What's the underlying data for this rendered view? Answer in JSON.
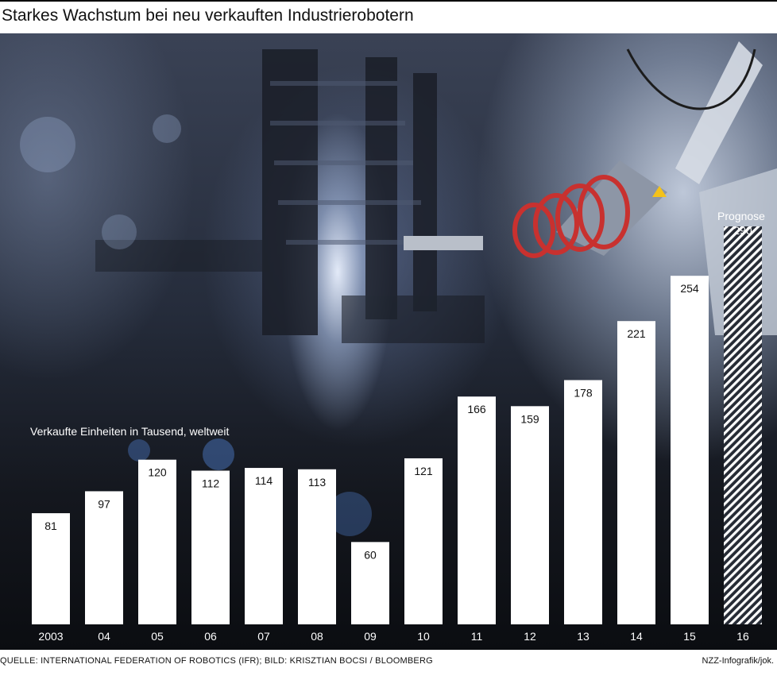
{
  "title": "Starkes Wachstum bei neu verkauften Industrierobotern",
  "footer": {
    "source": "QUELLE: INTERNATIONAL FEDERATION OF ROBOTICS (IFR); BILD: KRISZTIAN BOCSI / BLOOMBERG",
    "credit": "NZZ-Infografik/jok."
  },
  "chart_data": {
    "type": "bar",
    "subtitle": "Verkaufte Einheiten in Tausend, weltweit",
    "categories": [
      "2003",
      "04",
      "05",
      "06",
      "07",
      "08",
      "09",
      "10",
      "11",
      "12",
      "13",
      "14",
      "15",
      "16"
    ],
    "values": [
      81,
      97,
      120,
      112,
      114,
      113,
      60,
      121,
      166,
      159,
      178,
      221,
      254,
      290
    ],
    "forecast": {
      "index": 13,
      "label": "Prognose",
      "style": "hatched"
    },
    "ylim": [
      0,
      290
    ],
    "grid": false,
    "bar_color": "#ffffff",
    "label_color": "#111111",
    "axis_text_color": "#ffffff"
  }
}
